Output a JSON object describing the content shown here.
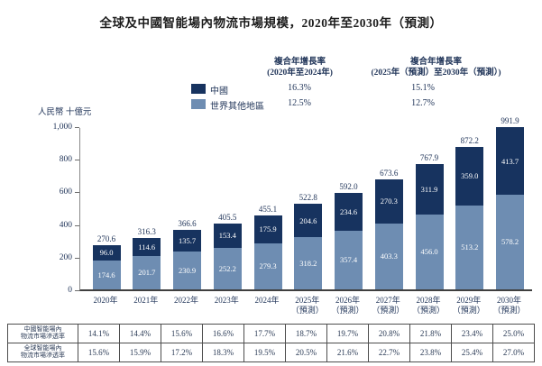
{
  "title": "全球及中國智能場內物流市場規模，2020年至2030年（預測）",
  "unit_label": "人民幣 十億元",
  "colors": {
    "china": "#17335f",
    "rest_of_world": "#6e8db2",
    "text": "#22365a"
  },
  "legend": {
    "col1_header_line1": "複合年增長率",
    "col1_header_line2": "(2020年至2024年)",
    "col2_header_line1": "複合年增長率",
    "col2_header_line2": "(2025年（預測）至2030年（預測）)",
    "items": [
      {
        "label": "中國",
        "color": "#17335f",
        "cagr1": "16.3%",
        "cagr2": "15.1%"
      },
      {
        "label": "世界其他地區",
        "color": "#6e8db2",
        "cagr1": "12.5%",
        "cagr2": "12.7%"
      }
    ]
  },
  "chart_data": {
    "type": "bar",
    "stacked": true,
    "title": "全球及中國智能場內物流市場規模，2020年至2030年（預測）",
    "ylabel": "人民幣 十億元",
    "ylim": [
      0,
      1000
    ],
    "yticks": [
      "0",
      "200",
      "400",
      "600",
      "800",
      "1,000"
    ],
    "grid": false,
    "legend_position": "top",
    "categories": [
      {
        "year": "2020年",
        "note": ""
      },
      {
        "year": "2021年",
        "note": ""
      },
      {
        "year": "2022年",
        "note": ""
      },
      {
        "year": "2023年",
        "note": ""
      },
      {
        "year": "2024年",
        "note": ""
      },
      {
        "year": "2025年",
        "note": "（預測）"
      },
      {
        "year": "2026年",
        "note": "（預測）"
      },
      {
        "year": "2027年",
        "note": "（預測）"
      },
      {
        "year": "2028年",
        "note": "（預測）"
      },
      {
        "year": "2029年",
        "note": "（預測）"
      },
      {
        "year": "2030年",
        "note": "（預測）"
      }
    ],
    "series": [
      {
        "name": "中國",
        "color": "#17335f",
        "values": [
          96.0,
          114.6,
          135.7,
          153.4,
          175.9,
          204.6,
          234.6,
          270.3,
          311.9,
          359.0,
          413.7
        ]
      },
      {
        "name": "世界其他地區",
        "color": "#6e8db2",
        "values": [
          174.6,
          201.7,
          230.9,
          252.2,
          279.3,
          318.2,
          357.4,
          403.3,
          456.0,
          513.2,
          578.2
        ]
      }
    ],
    "totals": [
      270.6,
      316.3,
      366.6,
      405.5,
      455.1,
      522.8,
      592.0,
      673.6,
      767.9,
      872.2,
      991.9
    ],
    "value_labels_format": "one_decimal"
  },
  "table": {
    "rows": [
      {
        "label_line1": "中國智能場內",
        "label_line2": "物流市場滲透率",
        "values": [
          "14.1%",
          "14.4%",
          "15.6%",
          "16.6%",
          "17.7%",
          "18.7%",
          "19.7%",
          "20.8%",
          "21.8%",
          "23.4%",
          "25.0%"
        ]
      },
      {
        "label_line1": "全球智能場內",
        "label_line2": "物流市場滲透率",
        "values": [
          "15.6%",
          "15.9%",
          "17.2%",
          "18.3%",
          "19.5%",
          "20.5%",
          "21.6%",
          "22.7%",
          "23.8%",
          "25.4%",
          "27.0%"
        ]
      }
    ]
  }
}
